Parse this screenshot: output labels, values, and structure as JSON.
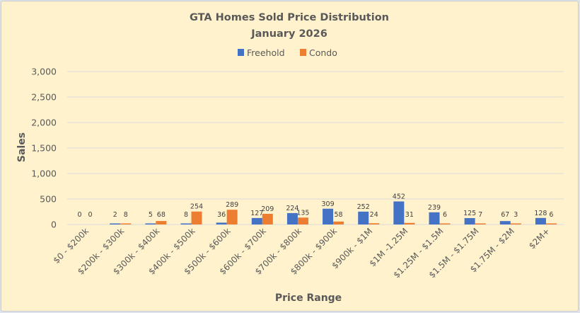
{
  "chart_data": {
    "type": "bar",
    "title": "GTA Homes Sold Price Distribution",
    "subtitle": "January 2026",
    "xlabel": "Price Range",
    "ylabel": "Sales",
    "ylim": [
      0,
      3000
    ],
    "yticks": [
      0,
      500,
      1000,
      1500,
      2000,
      2500,
      3000
    ],
    "ytick_labels": [
      "0",
      "500",
      "1,000",
      "1,500",
      "2,000",
      "2,500",
      "3,000"
    ],
    "grid": true,
    "legend_position": "top-center",
    "categories": [
      "$0 - $200k",
      "$200k - $300k",
      "$300k - $400k",
      "$400k - $500k",
      "$500k - $600k",
      "$600k - $700k",
      "$700k - $800k",
      "$800k - $900k",
      "$900k - $1M",
      "$1M -1.25M",
      "$1.25M - $1.5M",
      "$1.5M - $1.75M",
      "$1.75M - $2M",
      "$2M+"
    ],
    "series": [
      {
        "name": "Freehold",
        "color": "#4472c4",
        "values": [
          0,
          2,
          5,
          8,
          36,
          127,
          224,
          309,
          252,
          452,
          239,
          125,
          67,
          128
        ]
      },
      {
        "name": "Condo",
        "color": "#ed7d31",
        "values": [
          0,
          8,
          68,
          254,
          289,
          209,
          135,
          58,
          24,
          31,
          6,
          7,
          3,
          6
        ]
      }
    ]
  }
}
